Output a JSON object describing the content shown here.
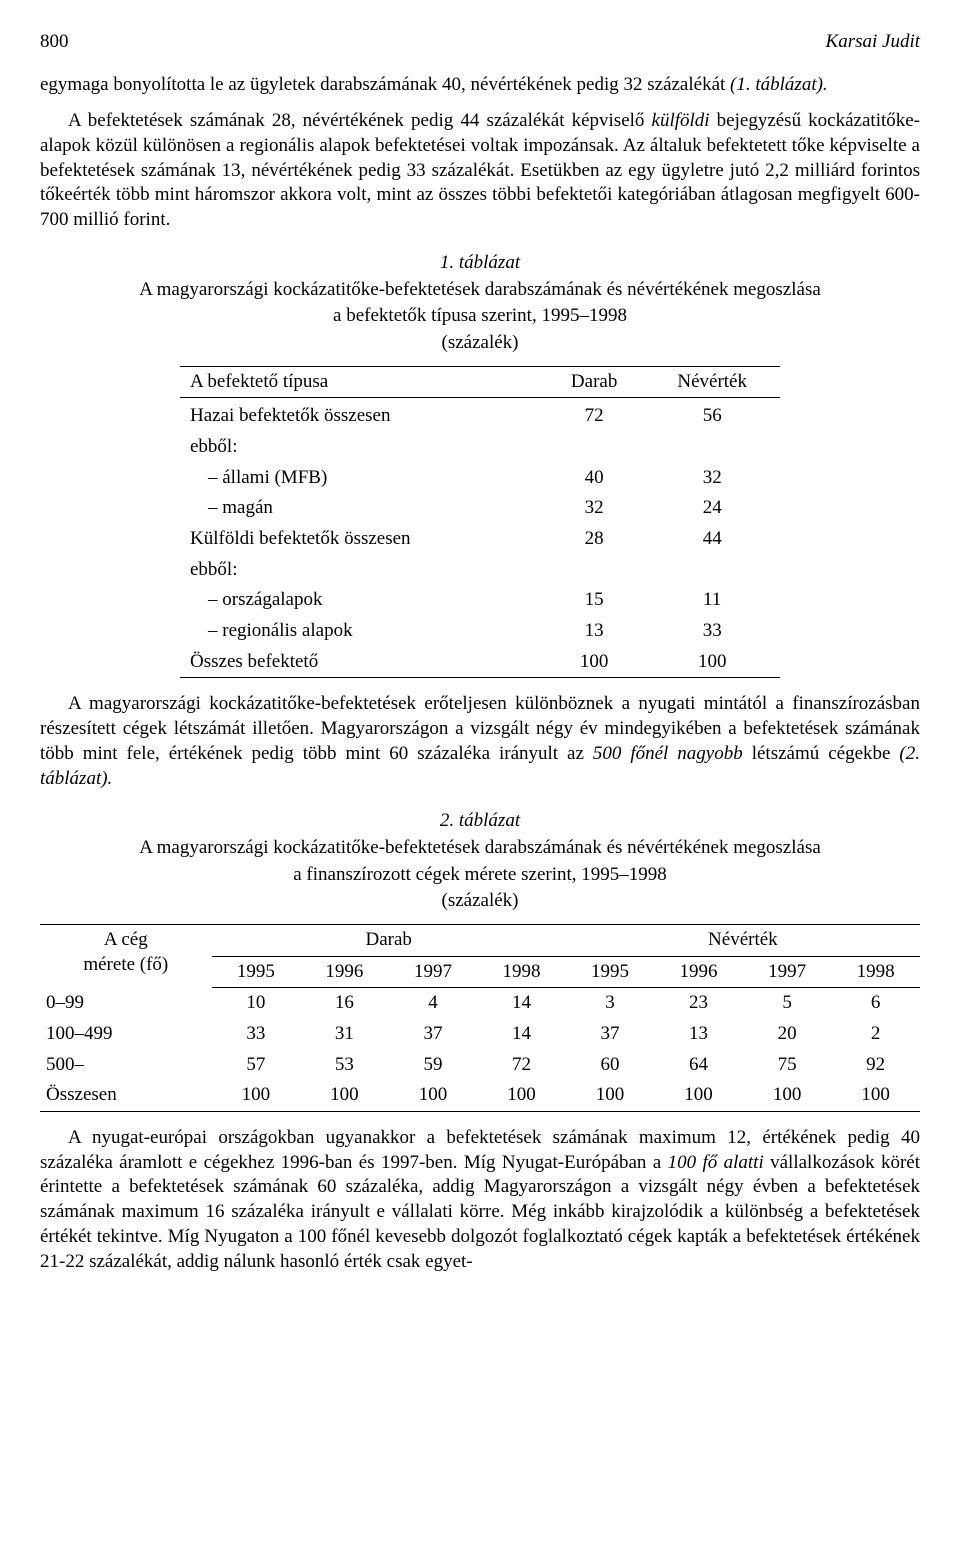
{
  "header": {
    "page_number": "800",
    "author": "Karsai Judit"
  },
  "para1_a": "egymaga bonyolította le az ügyletek darabszámának 40, névértékének pedig 32 százalékát ",
  "para1_i": "(1. táblázat).",
  "para2_a": "A befektetések számának 28, névértékének pedig 44 százalékát képviselő ",
  "para2_i": "külföldi",
  "para2_b": " bejegyzésű kockázatitőke-alapok közül különösen a regionális alapok befektetései voltak impozánsak. Az általuk befektetett tőke képviselte a befektetések számának 13, névértékének pedig 33 százalékát. Esetükben az egy ügyletre jutó 2,2 milliárd forintos tőkeérték több mint háromszor akkora volt, mint az összes többi befektetői kategóriában átlagosan megfigyelt 600-700 millió forint.",
  "table1": {
    "caption": "1. táblázat",
    "title1": "A magyarországi kockázatitőke-befektetések darabszámának és névértékének megoszlása",
    "title2": "a befektetők típusa szerint, 1995–1998",
    "unit": "(százalék)",
    "col1": "A befektető típusa",
    "col2": "Darab",
    "col3": "Névérték",
    "rows": [
      {
        "label": "Hazai befektetők összesen",
        "sub": false,
        "darab": "72",
        "nev": "56"
      },
      {
        "label": "ebből:",
        "sub": false,
        "darab": "",
        "nev": ""
      },
      {
        "label": "– állami (MFB)",
        "sub": true,
        "darab": "40",
        "nev": "32"
      },
      {
        "label": "– magán",
        "sub": true,
        "darab": "32",
        "nev": "24"
      },
      {
        "label": "Külföldi befektetők összesen",
        "sub": false,
        "darab": "28",
        "nev": "44"
      },
      {
        "label": "ebből:",
        "sub": false,
        "darab": "",
        "nev": ""
      },
      {
        "label": "– országalapok",
        "sub": true,
        "darab": "15",
        "nev": "11"
      },
      {
        "label": "– regionális alapok",
        "sub": true,
        "darab": "13",
        "nev": "33"
      },
      {
        "label": "Összes befektető",
        "sub": false,
        "darab": "100",
        "nev": "100"
      }
    ]
  },
  "para3_a": "A magyarországi kockázatitőke-befektetések erőteljesen különböznek a nyugati mintától a finanszírozásban részesített cégek létszámát illetően. Magyarországon a vizsgált négy év mindegyikében a befektetések számának több mint fele, értékének pedig több mint 60 százaléka irányult az ",
  "para3_i": "500 főnél nagyobb",
  "para3_b": " létszámú cégekbe ",
  "para3_i2": "(2. táblázat).",
  "table2": {
    "caption": "2. táblázat",
    "title1": "A magyarországi kockázatitőke-befektetések darabszámának és névértékének megoszlása",
    "title2": "a finanszírozott cégek mérete szerint, 1995–1998",
    "unit": "(százalék)",
    "rowhead1": "A cég",
    "rowhead2": "mérete (fő)",
    "group1": "Darab",
    "group2": "Névérték",
    "years": [
      "1995",
      "1996",
      "1997",
      "1998",
      "1995",
      "1996",
      "1997",
      "1998"
    ],
    "rows": [
      {
        "label": "0–99",
        "v": [
          "10",
          "16",
          "4",
          "14",
          "3",
          "23",
          "5",
          "6"
        ]
      },
      {
        "label": "100–499",
        "v": [
          "33",
          "31",
          "37",
          "14",
          "37",
          "13",
          "20",
          "2"
        ]
      },
      {
        "label": "500–",
        "v": [
          "57",
          "53",
          "59",
          "72",
          "60",
          "64",
          "75",
          "92"
        ]
      },
      {
        "label": "Összesen",
        "v": [
          "100",
          "100",
          "100",
          "100",
          "100",
          "100",
          "100",
          "100"
        ]
      }
    ]
  },
  "para4_a": "A nyugat-európai országokban ugyanakkor a befektetések számának maximum 12, értékének pedig 40 százaléka áramlott e cégekhez 1996-ban és 1997-ben. Míg Nyugat-Európában a ",
  "para4_i": "100 fő alatti",
  "para4_b": " vállalkozások körét érintette a befektetések számának 60 százaléka, addig Magyarországon a vizsgált négy évben a befektetések számának maximum 16 százaléka irányult e vállalati körre. Még inkább kirajzolódik a különbség a befektetések értékét tekintve. Míg Nyugaton a 100 főnél kevesebb dolgozót foglalkoztató cégek kapták a befektetések értékének 21-22 százalékát, addig nálunk hasonló érték csak egyet-"
}
